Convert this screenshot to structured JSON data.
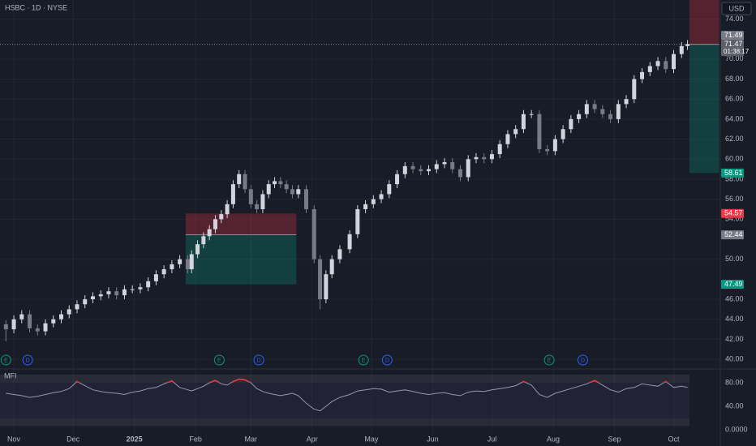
{
  "chart_data": {
    "type": "candlestick",
    "title": "HSBC · 1D · NYSE",
    "currency": "USD",
    "up_color": "#d1d4dc",
    "down_color": "#787b86",
    "xlim": [
      -7,
      342
    ],
    "xticks": [
      {
        "value": 0,
        "label": "Nov"
      },
      {
        "value": 30,
        "label": "Dec"
      },
      {
        "value": 61,
        "label": "2025"
      },
      {
        "value": 92,
        "label": "Feb"
      },
      {
        "value": 120,
        "label": "Mar"
      },
      {
        "value": 151,
        "label": "Apr"
      },
      {
        "value": 181,
        "label": "May"
      },
      {
        "value": 212,
        "label": "Jun"
      },
      {
        "value": 242,
        "label": "Jul"
      },
      {
        "value": 273,
        "label": "Aug"
      },
      {
        "value": 304,
        "label": "Sep"
      },
      {
        "value": 334,
        "label": "Oct"
      }
    ],
    "ylim": [
      39.2,
      75.9
    ],
    "yticks": [
      {
        "value": 40,
        "label": "40.00"
      },
      {
        "value": 42,
        "label": "42.00"
      },
      {
        "value": 44,
        "label": "44.00"
      },
      {
        "value": 46,
        "label": "46.00"
      },
      {
        "value": 50,
        "label": "50.00"
      },
      {
        "value": 54,
        "label": "54.00"
      },
      {
        "value": 56,
        "label": "56.00"
      },
      {
        "value": 58,
        "label": "58.00"
      },
      {
        "value": 60,
        "label": "60.00"
      },
      {
        "value": 62,
        "label": "62.00"
      },
      {
        "value": 64,
        "label": "64.00"
      },
      {
        "value": 66,
        "label": "66.00"
      },
      {
        "value": 68,
        "label": "68.00"
      },
      {
        "value": 70,
        "label": "70.00"
      },
      {
        "value": 74,
        "label": "74.00"
      }
    ],
    "grid": true,
    "x": [
      -4,
      0,
      4,
      8,
      12,
      16,
      20,
      24,
      28,
      32,
      36,
      40,
      44,
      48,
      52,
      56,
      60,
      64,
      68,
      72,
      76,
      80,
      84,
      88,
      90,
      93,
      96,
      99,
      102,
      105,
      108,
      111,
      114,
      117,
      120,
      123,
      126,
      129,
      132,
      135,
      138,
      141,
      144,
      148,
      152,
      155,
      158,
      161,
      165,
      170,
      174,
      178,
      182,
      186,
      190,
      194,
      198,
      202,
      206,
      210,
      214,
      218,
      222,
      226,
      230,
      234,
      238,
      242,
      246,
      250,
      254,
      258,
      262,
      266,
      270,
      274,
      278,
      282,
      286,
      290,
      294,
      298,
      302,
      306,
      310,
      314,
      318,
      322,
      326,
      330,
      334,
      338,
      341
    ],
    "open": [
      43.5,
      43.0,
      44.0,
      44.5,
      43.1,
      42.8,
      43.6,
      44.0,
      44.5,
      45.0,
      45.5,
      46.0,
      46.3,
      46.5,
      46.8,
      46.4,
      47.0,
      47.0,
      47.2,
      47.8,
      48.5,
      49.0,
      49.5,
      50.0,
      49.0,
      50.5,
      51.5,
      52.3,
      53.0,
      54.0,
      54.5,
      55.5,
      57.5,
      58.5,
      57.0,
      55.5,
      55.0,
      56.5,
      57.5,
      57.8,
      57.5,
      57.0,
      56.5,
      57.0,
      55.0,
      50.0,
      46.0,
      48.5,
      50.0,
      51.0,
      52.5,
      55.0,
      55.5,
      56.0,
      56.5,
      57.5,
      58.5,
      59.3,
      59.0,
      58.8,
      59.0,
      59.5,
      59.7,
      59.0,
      58.2,
      60.0,
      60.2,
      60.0,
      60.5,
      61.5,
      62.5,
      63.0,
      64.5,
      64.5,
      61.0,
      60.8,
      62.0,
      63.0,
      64.0,
      64.5,
      65.5,
      65.0,
      64.5,
      64.0,
      65.5,
      66.0,
      68.0,
      68.7,
      69.3,
      69.8,
      69.0,
      70.5,
      71.3
    ],
    "high": [
      43.9,
      44.4,
      44.9,
      44.9,
      43.5,
      44.0,
      44.4,
      44.9,
      45.4,
      45.9,
      46.4,
      46.7,
      46.9,
      47.2,
      47.2,
      47.4,
      47.4,
      47.6,
      48.2,
      48.9,
      49.4,
      49.9,
      50.4,
      50.4,
      50.9,
      51.9,
      52.7,
      53.4,
      54.4,
      54.9,
      55.9,
      57.9,
      58.9,
      58.9,
      57.4,
      55.9,
      56.9,
      57.9,
      58.2,
      58.2,
      57.9,
      57.4,
      57.4,
      57.4,
      55.4,
      50.4,
      48.9,
      50.4,
      51.4,
      52.9,
      55.4,
      55.9,
      56.4,
      56.9,
      57.9,
      58.9,
      59.7,
      59.7,
      59.4,
      59.4,
      59.9,
      60.1,
      60.1,
      59.4,
      60.4,
      60.6,
      60.6,
      60.9,
      61.9,
      62.9,
      63.4,
      64.9,
      64.9,
      64.9,
      61.4,
      62.4,
      63.4,
      64.4,
      64.9,
      65.9,
      65.9,
      65.4,
      64.9,
      65.9,
      66.4,
      68.4,
      69.1,
      69.7,
      70.2,
      70.2,
      70.9,
      71.7,
      71.9
    ],
    "low": [
      41.8,
      42.6,
      43.6,
      42.7,
      42.4,
      42.4,
      43.2,
      43.6,
      44.1,
      44.6,
      45.1,
      45.6,
      45.9,
      46.1,
      46.0,
      46.0,
      46.6,
      46.6,
      46.8,
      47.4,
      48.1,
      48.6,
      49.1,
      48.6,
      48.6,
      50.1,
      51.1,
      51.9,
      52.6,
      53.6,
      54.1,
      55.1,
      57.1,
      56.6,
      55.1,
      54.6,
      54.6,
      56.1,
      57.1,
      57.1,
      56.6,
      56.1,
      56.1,
      54.6,
      49.6,
      45.0,
      45.6,
      48.1,
      49.6,
      50.6,
      52.1,
      54.6,
      55.1,
      55.6,
      56.1,
      57.1,
      58.1,
      58.6,
      58.4,
      58.4,
      58.6,
      59.1,
      58.6,
      57.8,
      57.8,
      59.6,
      59.6,
      59.6,
      60.1,
      61.1,
      62.1,
      62.6,
      64.1,
      60.6,
      60.4,
      60.4,
      61.6,
      62.6,
      63.6,
      64.1,
      64.6,
      64.1,
      63.6,
      63.6,
      65.1,
      65.6,
      67.6,
      68.3,
      68.9,
      68.6,
      68.6,
      70.1,
      70.9
    ],
    "close": [
      43.0,
      44.0,
      44.5,
      43.1,
      42.8,
      43.6,
      44.0,
      44.5,
      45.0,
      45.5,
      46.0,
      46.3,
      46.5,
      46.8,
      46.4,
      47.0,
      47.0,
      47.2,
      47.8,
      48.5,
      49.0,
      49.5,
      50.0,
      49.0,
      50.5,
      51.5,
      52.3,
      53.0,
      54.0,
      54.5,
      55.5,
      57.5,
      58.5,
      57.0,
      55.5,
      55.0,
      56.5,
      57.5,
      57.8,
      57.5,
      57.0,
      56.5,
      57.0,
      55.0,
      50.0,
      46.0,
      48.5,
      50.0,
      51.0,
      52.5,
      55.0,
      55.5,
      56.0,
      56.5,
      57.5,
      58.5,
      59.3,
      59.0,
      58.8,
      59.0,
      59.5,
      59.7,
      59.0,
      58.2,
      60.0,
      60.2,
      60.0,
      60.5,
      61.5,
      62.5,
      63.0,
      64.5,
      64.5,
      61.0,
      60.8,
      62.0,
      63.0,
      64.0,
      64.5,
      65.5,
      65.0,
      64.5,
      64.0,
      65.5,
      66.0,
      68.0,
      68.7,
      69.3,
      69.8,
      69.0,
      70.5,
      71.3,
      71.5
    ],
    "positions": [
      {
        "x_start": 87,
        "x_end": 143,
        "stop": 54.57,
        "entry": 52.44,
        "target": 47.49
      },
      {
        "x_start": 342,
        "x_end": 357,
        "stop": 76.5,
        "entry": 71.47,
        "target": 58.61
      }
    ],
    "last_price": 71.47,
    "markers": [
      {
        "value": 71.49,
        "label": "71.49",
        "color": "#787b86"
      },
      {
        "value": 71.47,
        "label": "71.47",
        "sublabel": "01:38:17",
        "color": "#5d606b"
      },
      {
        "value": 58.61,
        "label": "58.61",
        "color": "#089981"
      },
      {
        "value": 54.57,
        "label": "54.57",
        "color": "#f23645"
      },
      {
        "value": 52.44,
        "label": "52.44",
        "color": "#787b86"
      },
      {
        "value": 47.49,
        "label": "47.49",
        "color": "#089981"
      }
    ],
    "events": [
      {
        "label": "E",
        "x": -4
      },
      {
        "label": "D",
        "x": 7
      },
      {
        "label": "E",
        "x": 104
      },
      {
        "label": "D",
        "x": 124
      },
      {
        "label": "E",
        "x": 177
      },
      {
        "label": "D",
        "x": 189
      },
      {
        "label": "E",
        "x": 271
      },
      {
        "label": "D",
        "x": 288
      }
    ],
    "indicator": {
      "name": "MFI",
      "type": "line",
      "color": "#9598a1",
      "overbought_color": "#f23645",
      "ylim": [
        -7,
        99.3
      ],
      "yticks": [
        {
          "value": 0,
          "label": "0.0000"
        },
        {
          "value": 40,
          "label": "40.00"
        },
        {
          "value": 80,
          "label": "80.00"
        }
      ],
      "bands": [
        20,
        80
      ],
      "values": [
        62,
        60,
        58,
        55,
        57,
        60,
        63,
        65,
        70,
        82,
        75,
        68,
        65,
        63,
        62,
        60,
        64,
        66,
        70,
        72,
        78,
        83,
        72,
        68,
        66,
        70,
        74,
        80,
        84,
        78,
        76,
        82,
        86,
        85,
        80,
        70,
        65,
        62,
        60,
        58,
        60,
        62,
        58,
        45,
        35,
        32,
        40,
        48,
        55,
        60,
        66,
        68,
        70,
        69,
        64,
        66,
        68,
        65,
        62,
        60,
        62,
        63,
        60,
        58,
        64,
        66,
        65,
        68,
        70,
        72,
        75,
        82,
        76,
        60,
        55,
        62,
        66,
        70,
        74,
        78,
        84,
        76,
        68,
        64,
        70,
        72,
        78,
        76,
        74,
        82,
        72,
        74,
        72
      ]
    }
  }
}
